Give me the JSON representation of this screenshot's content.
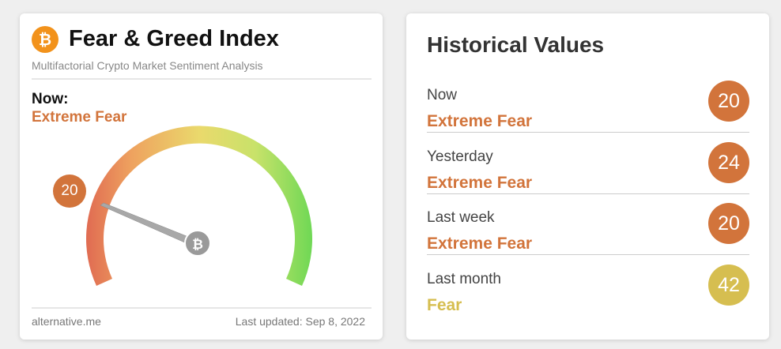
{
  "widget": {
    "title": "Fear & Greed Index",
    "subtitle": "Multifactorial Crypto Market Sentiment Analysis",
    "now_label": "Now:",
    "classification": "Extreme Fear",
    "value": "20",
    "source": "alternative.me",
    "last_updated": "Last updated: Sep 8, 2022"
  },
  "history": {
    "title": "Historical Values",
    "rows": [
      {
        "label": "Now",
        "classification": "Extreme Fear",
        "value": "20",
        "color": "#d2743b"
      },
      {
        "label": "Yesterday",
        "classification": "Extreme Fear",
        "value": "24",
        "color": "#d2743b"
      },
      {
        "label": "Last week",
        "classification": "Extreme Fear",
        "value": "20",
        "color": "#d2743b"
      },
      {
        "label": "Last month",
        "classification": "Fear",
        "value": "42",
        "color": "#d6be50"
      }
    ]
  }
}
